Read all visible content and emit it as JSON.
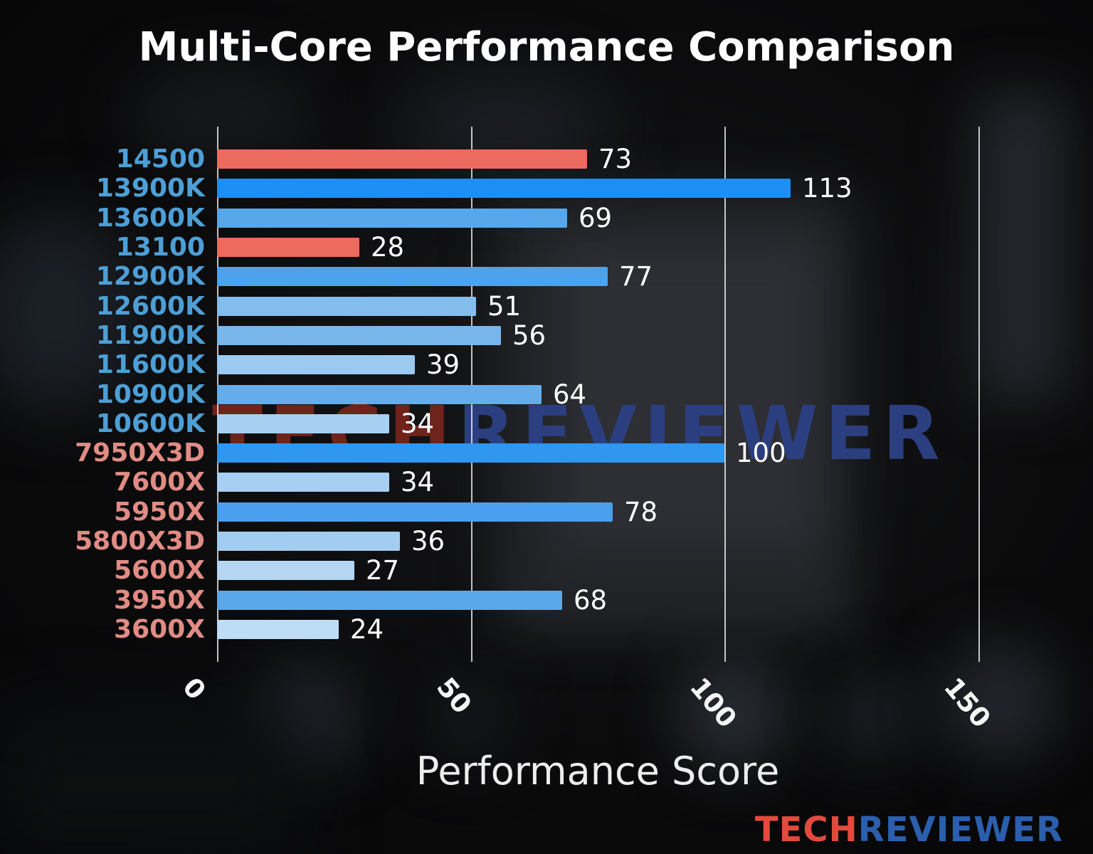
{
  "watermark": {
    "tech": "TECH",
    "reviewer": "REVIEWER",
    "tech_color": "#6e231b",
    "reviewer_color": "#2b3f80"
  },
  "brand_logo": {
    "tech": "TECH",
    "reviewer": "REVIEWER",
    "tech_color": "#e24a3e",
    "reviewer_color": "#2b5fae"
  },
  "chart_data": {
    "type": "bar",
    "orientation": "horizontal",
    "title": "Multi-Core Performance Comparison",
    "xlabel": "Performance Score",
    "ylabel": "",
    "xlim": [
      0,
      160
    ],
    "xticks": [
      "0",
      "50",
      "100",
      "150"
    ],
    "xtick_values": [
      0,
      50,
      100,
      150
    ],
    "grid": true,
    "categories": [
      "14500",
      "13900K",
      "13600K",
      "13100",
      "12900K",
      "12600K",
      "11900K",
      "11600K",
      "10900K",
      "10600K",
      "7950X3D",
      "7600X",
      "5950X",
      "5800X3D",
      "5600X",
      "3950X",
      "3600X"
    ],
    "values": [
      73,
      113,
      69,
      28,
      77,
      51,
      56,
      39,
      64,
      34,
      100,
      34,
      78,
      36,
      27,
      68,
      24
    ],
    "bar_colors": [
      "#ed6a5e",
      "#1e8ff2",
      "#57a7ea",
      "#ed6a5e",
      "#4da2ee",
      "#84bcec",
      "#78b6ec",
      "#9bc9f0",
      "#65adea",
      "#a6cff1",
      "#2f97f0",
      "#a6cff1",
      "#4aa0ee",
      "#a2cdf0",
      "#b4d6f3",
      "#5aa8ea",
      "#bedcf5"
    ],
    "label_colors": [
      "#4d9fd6",
      "#4d9fd6",
      "#4d9fd6",
      "#4d9fd6",
      "#4d9fd6",
      "#4d9fd6",
      "#4d9fd6",
      "#4d9fd6",
      "#4d9fd6",
      "#4d9fd6",
      "#e08c84",
      "#e08c84",
      "#e08c84",
      "#e08c84",
      "#e08c84",
      "#e08c84",
      "#e08c84"
    ],
    "value_label_color": "#ffffff",
    "highlight_color": "#ed6a5e"
  }
}
